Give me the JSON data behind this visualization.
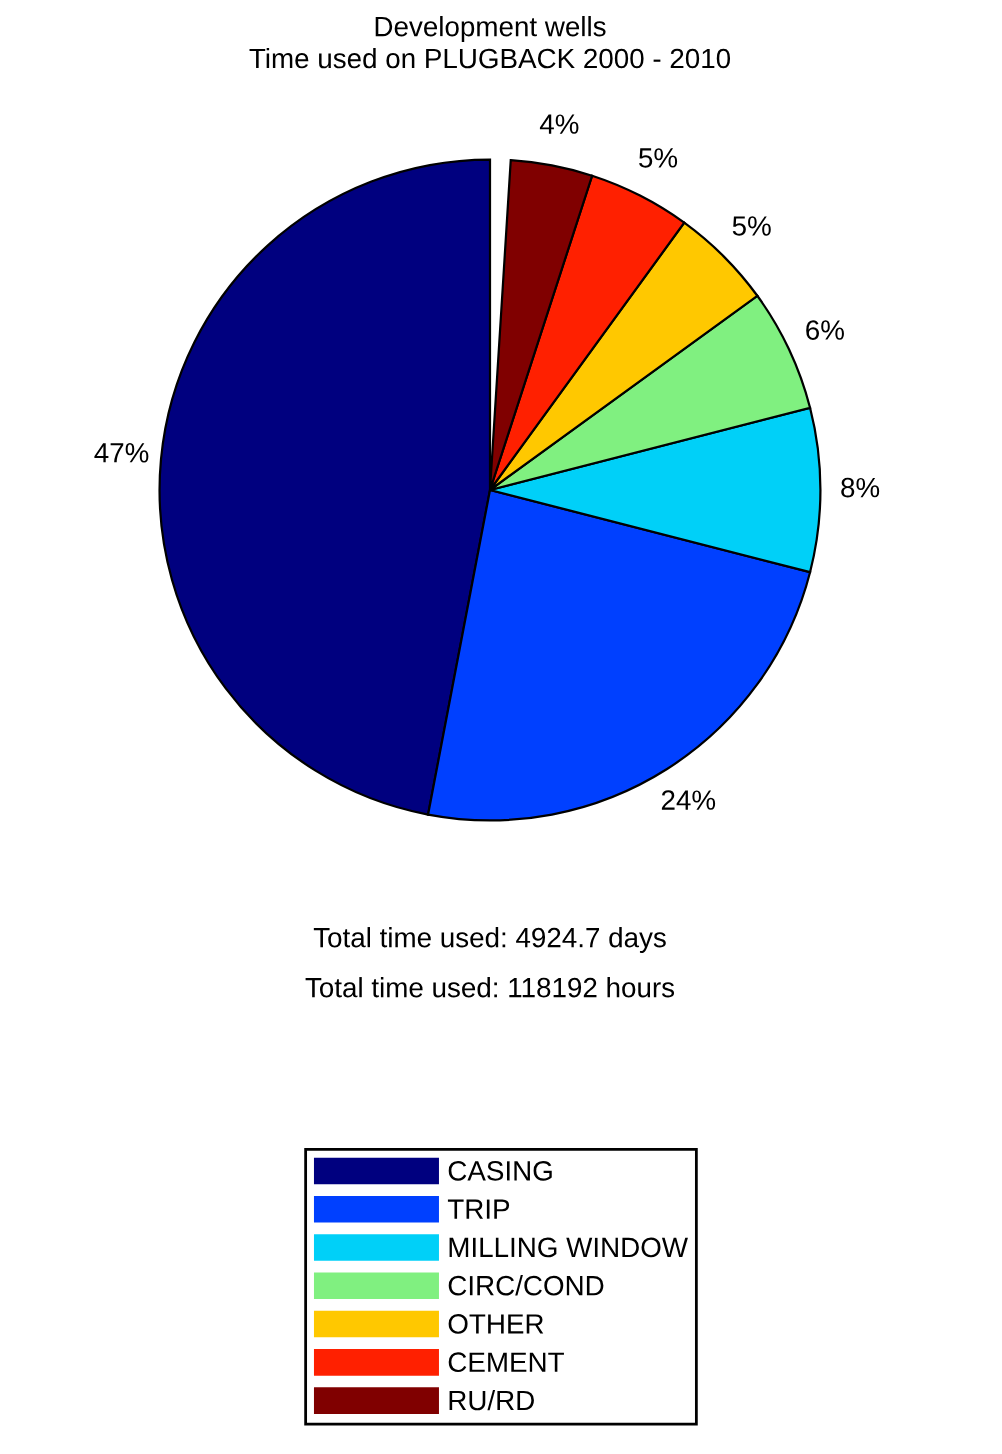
{
  "chart_data": {
    "type": "pie",
    "title": "Development wells\nTime used on PLUGBACK 2000 - 2010",
    "categories": [
      "CASING",
      "TRIP",
      "MILLING WINDOW",
      "CIRC/COND",
      "OTHER",
      "CEMENT",
      "RU/RD"
    ],
    "values": [
      47,
      24,
      8,
      6,
      5,
      5,
      4
    ],
    "colors": [
      "#00007f",
      "#0040ff",
      "#00d0f8",
      "#80f080",
      "#ffc800",
      "#ff2000",
      "#800000"
    ],
    "value_labels": [
      "47%",
      "24%",
      "8%",
      "6%",
      "5%",
      "5%",
      "4%"
    ],
    "annotations": [
      "Total time used: 4924.7 days",
      "Total time used: 118192 hours"
    ],
    "legend": "bottom"
  }
}
